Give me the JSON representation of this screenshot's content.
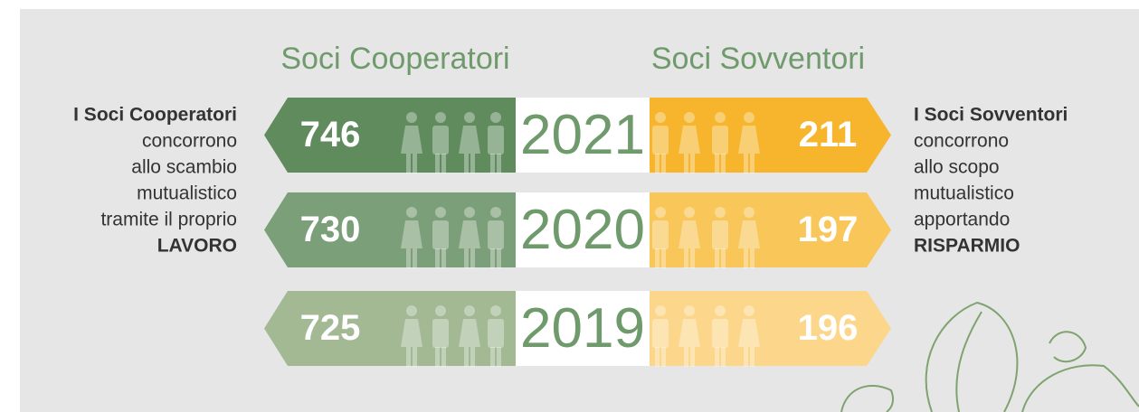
{
  "headers": {
    "cooperatori": "Soci Cooperatori",
    "sovventori": "Soci Sovventori"
  },
  "rows": [
    {
      "year": "2021",
      "cooperatori": 746,
      "sovventori": 211
    },
    {
      "year": "2020",
      "cooperatori": 730,
      "sovventori": 197
    },
    {
      "year": "2019",
      "cooperatori": 725,
      "sovventori": 196
    }
  ],
  "left_text": {
    "title": "I Soci Cooperatori",
    "lines": [
      "concorrono",
      "allo scambio",
      "mutualistico",
      "tramite il proprio"
    ],
    "emphasis": "LAVORO"
  },
  "right_text": {
    "title": "I Soci Sovventori",
    "lines": [
      "concorrono",
      "allo scopo",
      "mutualistico",
      "apportando"
    ],
    "emphasis": "RISPARMIO"
  }
}
